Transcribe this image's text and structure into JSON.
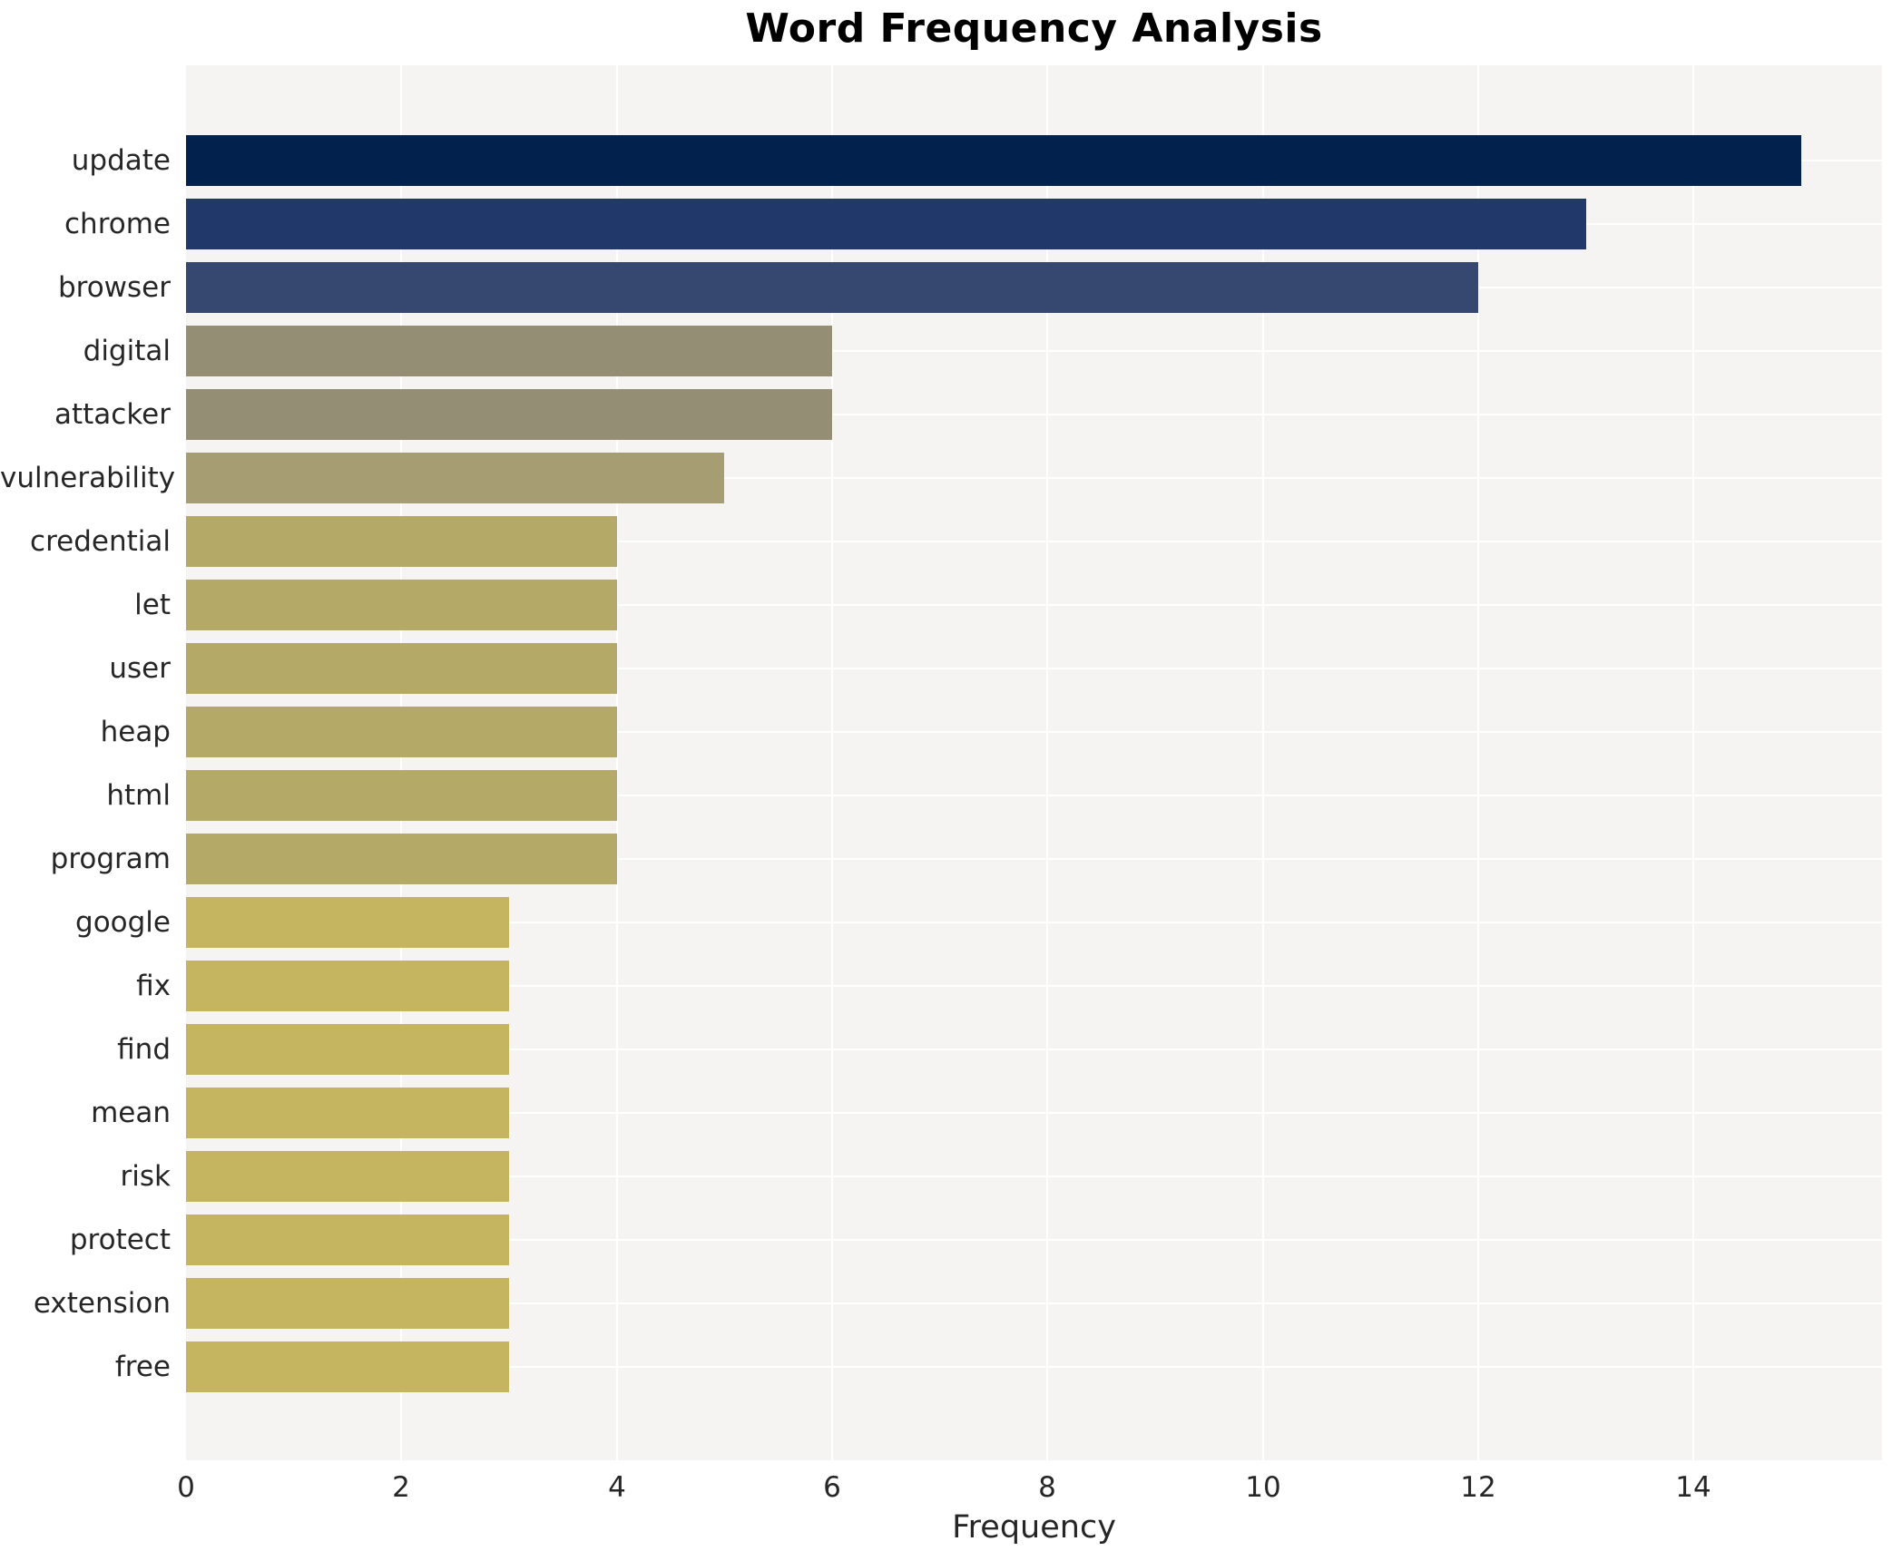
{
  "chart_data": {
    "type": "bar",
    "orientation": "horizontal",
    "title": "Word Frequency Analysis",
    "xlabel": "Frequency",
    "ylabel": "",
    "categories": [
      "update",
      "chrome",
      "browser",
      "digital",
      "attacker",
      "vulnerability",
      "credential",
      "let",
      "user",
      "heap",
      "html",
      "program",
      "google",
      "fix",
      "find",
      "mean",
      "risk",
      "protect",
      "extension",
      "free"
    ],
    "values": [
      15,
      13,
      12,
      6,
      6,
      5,
      4,
      4,
      4,
      4,
      4,
      4,
      3,
      3,
      3,
      3,
      3,
      3,
      3,
      3
    ],
    "bar_colors": [
      "#02214d",
      "#21386b",
      "#36486f",
      "#948e75",
      "#948e75",
      "#a69e72",
      "#b5a967",
      "#b5a967",
      "#b5a967",
      "#b5a967",
      "#b5a967",
      "#b5a967",
      "#c6b560",
      "#c6b560",
      "#c6b560",
      "#c6b560",
      "#c6b560",
      "#c6b560",
      "#c6b560",
      "#c6b560"
    ],
    "x_ticks": [
      0,
      2,
      4,
      6,
      8,
      10,
      12,
      14
    ],
    "xlim": [
      0,
      15.75
    ],
    "grid": true,
    "legend": "none",
    "plot_background": "#f5f4f2",
    "grid_color": "#ffffff",
    "tick_color": "#262626",
    "title_color": "#000000"
  }
}
